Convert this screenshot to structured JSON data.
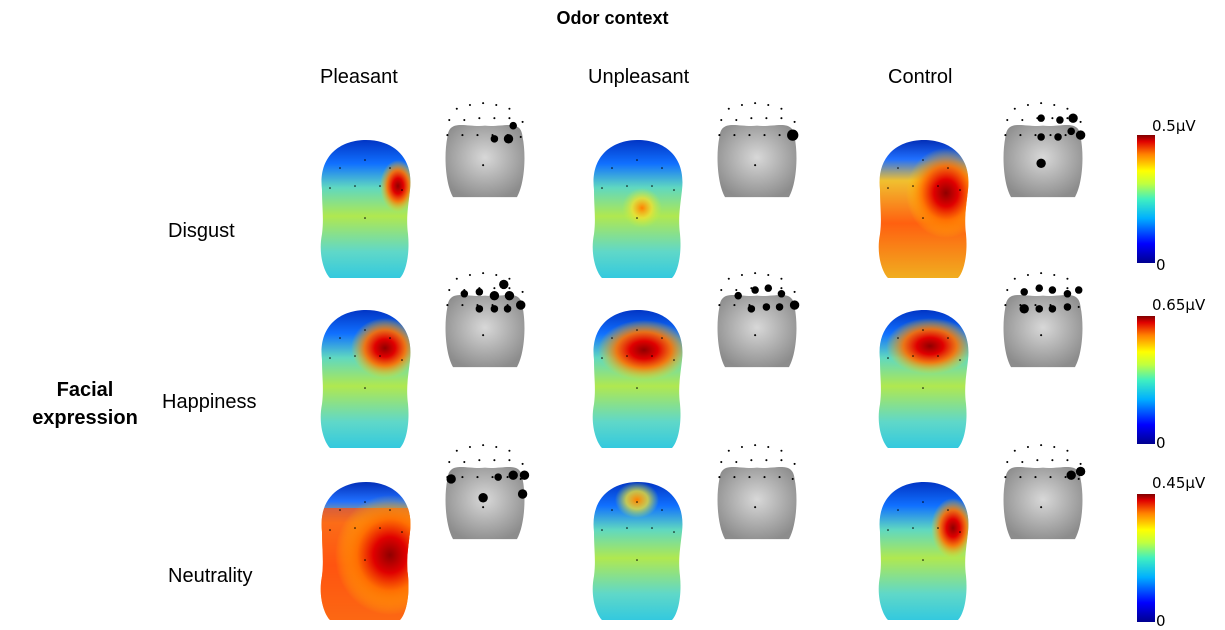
{
  "header": {
    "title": "Odor context"
  },
  "columns": [
    {
      "label": "Pleasant"
    },
    {
      "label": "Unpleasant"
    },
    {
      "label": "Control"
    }
  ],
  "rows_title": {
    "line1": "Facial",
    "line2": "expression"
  },
  "rows": [
    {
      "label": "Disgust",
      "colorbar": {
        "max": "0.5µV",
        "min": "0"
      }
    },
    {
      "label": "Happiness",
      "colorbar": {
        "max": "0.65µV",
        "min": "0"
      }
    },
    {
      "label": "Neutrality",
      "colorbar": {
        "max": "0.45µV",
        "min": "0"
      }
    }
  ],
  "colors": {
    "colormap": [
      "#00008f",
      "#0000ff",
      "#00a0ff",
      "#40e0d0",
      "#b0ff50",
      "#ffff00",
      "#ff8000",
      "#e00000",
      "#800000"
    ],
    "scalp_background": "#a8a8a8",
    "electrode": "#000000"
  }
}
